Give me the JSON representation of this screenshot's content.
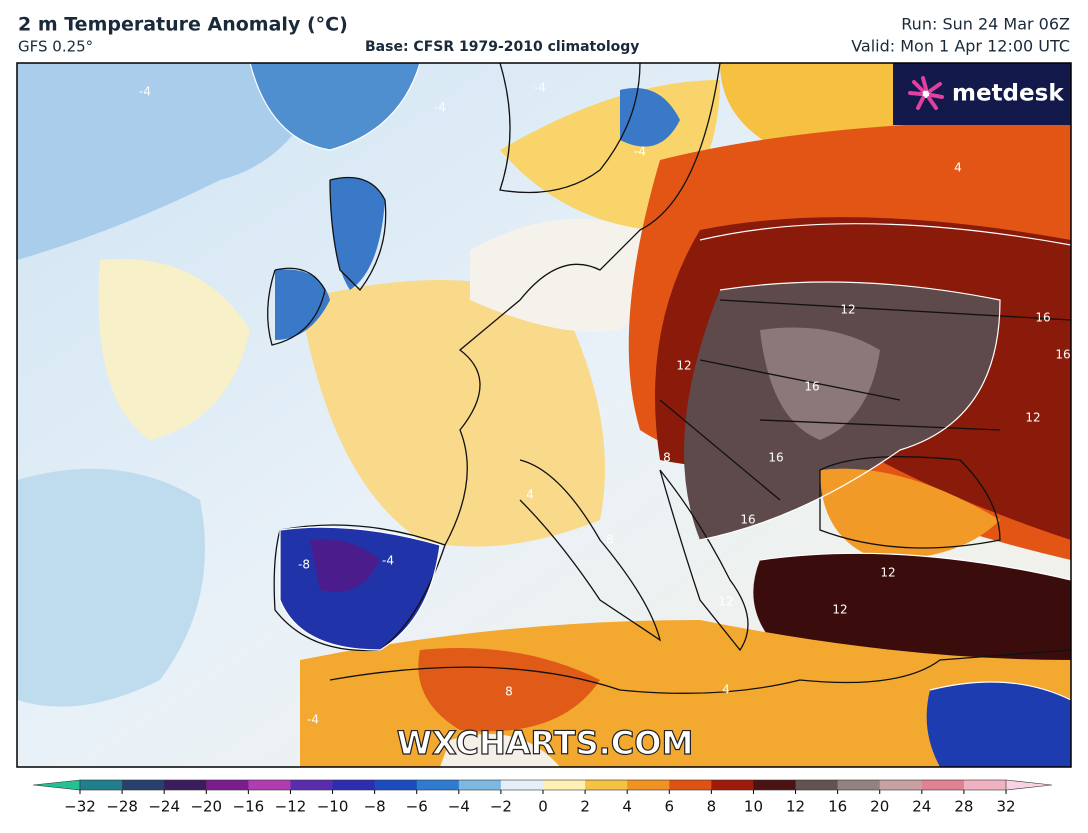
{
  "header": {
    "title": "2 m Temperature Anomaly (°C)",
    "model": "GFS 0.25°",
    "base": "Base: CFSR 1979-2010 climatology",
    "run": "Run: Sun 24 Mar 06Z",
    "valid": "Valid: Mon 1 Apr 12:00 UTC"
  },
  "logo": "metdesk",
  "watermark": "WXCHARTS.COM",
  "map": {
    "contour_labels": [
      "-4",
      "-4",
      "-4",
      "-4",
      "4",
      "12",
      "16",
      "12",
      "16",
      "16",
      "12",
      "12",
      "16",
      "16",
      "-8",
      "-4",
      "8",
      "8",
      "12",
      "12",
      "4",
      "4",
      "-4",
      "8"
    ]
  },
  "colorbar": {
    "ticks": [
      {
        "value": -32,
        "label": "−32"
      },
      {
        "value": -28,
        "label": "−28"
      },
      {
        "value": -24,
        "label": "−24"
      },
      {
        "value": -20,
        "label": "−20"
      },
      {
        "value": -16,
        "label": "−16"
      },
      {
        "value": -12,
        "label": "−12"
      },
      {
        "value": -10,
        "label": "−10"
      },
      {
        "value": -8,
        "label": "−8"
      },
      {
        "value": -6,
        "label": "−6"
      },
      {
        "value": -4,
        "label": "−4"
      },
      {
        "value": -2,
        "label": "−2"
      },
      0,
      2,
      4,
      6,
      8,
      10,
      12,
      16,
      20,
      24,
      28,
      32
    ],
    "colors": [
      "#1f7f8c",
      "#27406e",
      "#3b1d5e",
      "#7b1e8c",
      "#b03cb0",
      "#5a2cb0",
      "#2c2db2",
      "#1c4cc2",
      "#2e7bd0",
      "#7cb9e2",
      "#e6eff7",
      "#fff1b3",
      "#f7c142",
      "#f09322",
      "#e05212",
      "#a01a0a",
      "#4a1212",
      "#625252",
      "#928282",
      "#c8a2a2",
      "#e08292",
      "#f0b2c2"
    ],
    "under_color": "#22c092",
    "over_color": "#f8d2e2"
  }
}
